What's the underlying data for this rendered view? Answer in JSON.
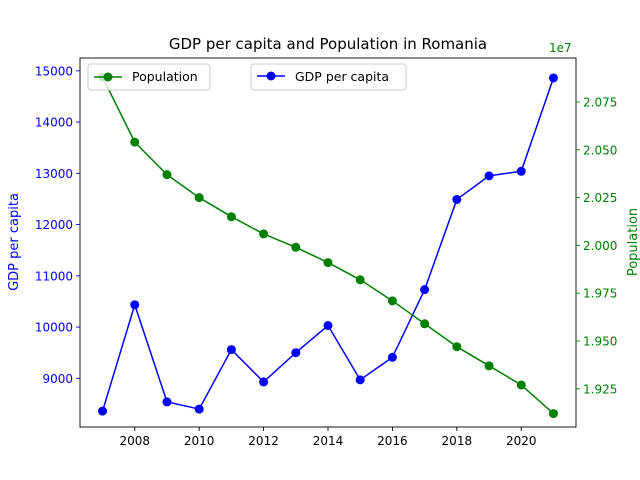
{
  "chart_data": {
    "type": "line",
    "title": "GDP per capita and Population in Romania",
    "xlabel": "",
    "x": [
      2007,
      2008,
      2009,
      2010,
      2011,
      2012,
      2013,
      2014,
      2015,
      2016,
      2017,
      2018,
      2019,
      2020,
      2021
    ],
    "x_ticks": [
      "2008",
      "2010",
      "2012",
      "2014",
      "2016",
      "2018",
      "2020"
    ],
    "x_tick_values": [
      2008,
      2010,
      2012,
      2014,
      2016,
      2018,
      2020
    ],
    "left_axis": {
      "label": "GDP per capita",
      "color": "#0000ff",
      "ylim": [
        8050,
        15250
      ],
      "ticks": [
        "9000",
        "10000",
        "11000",
        "12000",
        "13000",
        "14000",
        "15000"
      ],
      "tick_values": [
        9000,
        10000,
        11000,
        12000,
        13000,
        14000,
        15000
      ]
    },
    "right_axis": {
      "label": "Population",
      "color": "#008000",
      "offset_text": "1e7",
      "ylim": [
        19050000,
        20980000
      ],
      "ticks": [
        "1.925",
        "1.950",
        "1.975",
        "2.000",
        "2.025",
        "2.050",
        "2.075"
      ],
      "tick_values": [
        19250000,
        19500000,
        19750000,
        20000000,
        20250000,
        20500000,
        20750000
      ]
    },
    "series": [
      {
        "name": "GDP per capita",
        "axis": "left",
        "color": "#0000ff",
        "values": [
          8360,
          10435,
          8540,
          8400,
          9560,
          8930,
          9500,
          10030,
          8970,
          9410,
          10730,
          12490,
          12950,
          13040,
          14860
        ]
      },
      {
        "name": "Population",
        "axis": "right",
        "color": "#008000",
        "values": [
          20880000,
          20540000,
          20370000,
          20250000,
          20150000,
          20060000,
          19990000,
          19910000,
          19820000,
          19710000,
          19590000,
          19470000,
          19370000,
          19270000,
          19120000
        ]
      }
    ],
    "legend": [
      {
        "label": "Population",
        "color": "#008000",
        "placement": "upper-left"
      },
      {
        "label": "GDP per capita",
        "color": "#0000ff",
        "placement": "upper-center"
      }
    ],
    "grid": false
  }
}
